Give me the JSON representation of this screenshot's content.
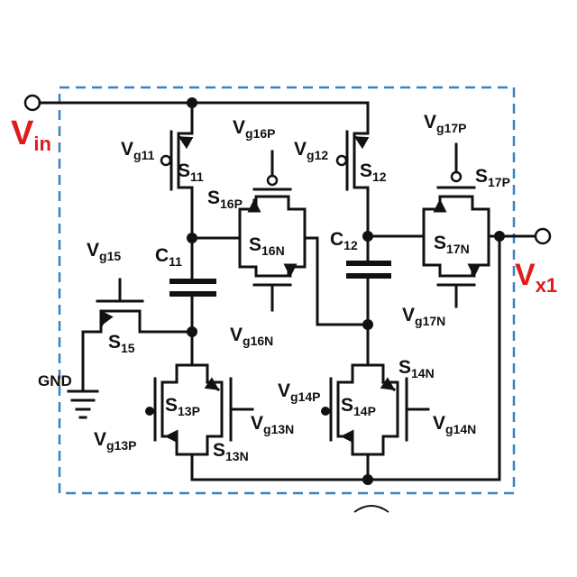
{
  "diagram": {
    "input_label": {
      "main": "V",
      "sub": "in"
    },
    "output_label": {
      "main": "V",
      "sub": "x1"
    },
    "gnd_label": "GND",
    "label_color": "#dd1c1c",
    "boundary_color": "#3a80c4",
    "components": {
      "s11": {
        "main": "S",
        "sub": "11"
      },
      "vg11": {
        "main": "V",
        "sub": "g11"
      },
      "s12": {
        "main": "S",
        "sub": "12"
      },
      "vg12": {
        "main": "V",
        "sub": "g12"
      },
      "vg16p": {
        "main": "V",
        "sub": "g16P"
      },
      "s16p": {
        "main": "S",
        "sub": "16P"
      },
      "s16n": {
        "main": "S",
        "sub": "16N"
      },
      "vg16n": {
        "main": "V",
        "sub": "g16N"
      },
      "vg17p": {
        "main": "V",
        "sub": "g17P"
      },
      "s17p": {
        "main": "S",
        "sub": "17P"
      },
      "s17n": {
        "main": "S",
        "sub": "17N"
      },
      "vg17n": {
        "main": "V",
        "sub": "g17N"
      },
      "c11": {
        "main": "C",
        "sub": "11"
      },
      "c12": {
        "main": "C",
        "sub": "12"
      },
      "vg15": {
        "main": "V",
        "sub": "g15"
      },
      "s15": {
        "main": "S",
        "sub": "15"
      },
      "s13p": {
        "main": "S",
        "sub": "13P"
      },
      "vg13p": {
        "main": "V",
        "sub": "g13P"
      },
      "vg13n": {
        "main": "V",
        "sub": "g13N"
      },
      "s13n": {
        "main": "S",
        "sub": "13N"
      },
      "vg14p": {
        "main": "V",
        "sub": "g14P"
      },
      "s14p": {
        "main": "S",
        "sub": "14P"
      },
      "s14n": {
        "main": "S",
        "sub": "14N"
      },
      "vg14n": {
        "main": "V",
        "sub": "g14N"
      }
    }
  }
}
